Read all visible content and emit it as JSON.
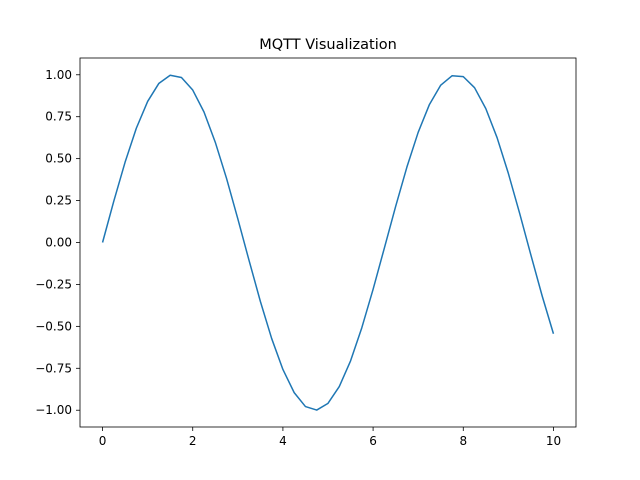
{
  "chart_data": {
    "type": "line",
    "title": "MQTT Visualization",
    "xlabel": "",
    "ylabel": "",
    "xlim": [
      -0.5,
      10.5
    ],
    "ylim": [
      -1.1,
      1.1
    ],
    "xticks": [
      0,
      2,
      4,
      6,
      8,
      10
    ],
    "xtick_labels": [
      "0",
      "2",
      "4",
      "6",
      "8",
      "10"
    ],
    "yticks": [
      -1.0,
      -0.75,
      -0.5,
      -0.25,
      0.0,
      0.25,
      0.5,
      0.75,
      1.0
    ],
    "ytick_labels": [
      "−1.00",
      "−0.75",
      "−0.50",
      "−0.25",
      "0.00",
      "0.25",
      "0.50",
      "0.75",
      "1.00"
    ],
    "grid": false,
    "series": [
      {
        "color": "#1f77b4",
        "x": [
          0,
          0.25,
          0.5,
          0.75,
          1.0,
          1.25,
          1.5,
          1.75,
          2.0,
          2.25,
          2.5,
          2.75,
          3.0,
          3.25,
          3.5,
          3.75,
          4.0,
          4.25,
          4.5,
          4.75,
          5.0,
          5.25,
          5.5,
          5.75,
          6.0,
          6.25,
          6.5,
          6.75,
          7.0,
          7.25,
          7.5,
          7.75,
          8.0,
          8.25,
          8.5,
          8.75,
          9.0,
          9.25,
          9.5,
          9.75,
          10.0
        ],
        "y": [
          0.0,
          0.247,
          0.479,
          0.682,
          0.841,
          0.949,
          0.997,
          0.984,
          0.909,
          0.778,
          0.598,
          0.382,
          0.141,
          -0.108,
          -0.351,
          -0.572,
          -0.757,
          -0.895,
          -0.978,
          -0.999,
          -0.959,
          -0.859,
          -0.706,
          -0.508,
          -0.279,
          -0.033,
          0.215,
          0.45,
          0.657,
          0.823,
          0.938,
          0.994,
          0.989,
          0.923,
          0.798,
          0.625,
          0.412,
          0.174,
          -0.075,
          -0.319,
          -0.544
        ]
      }
    ]
  }
}
